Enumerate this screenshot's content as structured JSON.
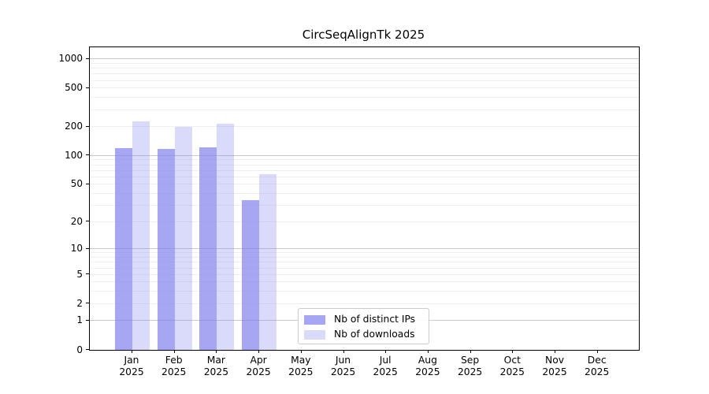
{
  "chart_data": {
    "type": "bar",
    "title": "CircSeqAlignTk 2025",
    "categories": [
      "Jan 2025",
      "Feb 2025",
      "Mar 2025",
      "Apr 2025",
      "May 2025",
      "Jun 2025",
      "Jul 2025",
      "Aug 2025",
      "Sep 2025",
      "Oct 2025",
      "Nov 2025",
      "Dec 2025"
    ],
    "series": [
      {
        "name": "Nb of distinct IPs",
        "values": [
          119,
          117,
          122,
          34,
          0,
          0,
          0,
          0,
          0,
          0,
          0,
          0
        ],
        "alpha": 0.72
      },
      {
        "name": "Nb of downloads",
        "values": [
          226,
          200,
          214,
          64,
          0,
          0,
          0,
          0,
          0,
          0,
          0,
          0
        ],
        "alpha": 0.3
      }
    ],
    "yscale": "log1p",
    "ylim": [
      0,
      1320
    ],
    "ytick_labels": [
      "0",
      "1",
      "2",
      "5",
      "10",
      "20",
      "50",
      "100",
      "200",
      "500",
      "1000"
    ],
    "ytick_values": [
      0,
      1,
      2,
      5,
      10,
      20,
      50,
      100,
      200,
      500,
      1000
    ],
    "grid": {
      "on": true,
      "minor_values": [
        2,
        3,
        4,
        5,
        6,
        7,
        8,
        9,
        20,
        30,
        40,
        50,
        60,
        70,
        80,
        90,
        200,
        300,
        400,
        500,
        600,
        700,
        800,
        900
      ],
      "major_values": [
        1,
        10,
        100,
        1000
      ]
    },
    "legend_position": "lower center",
    "xlabel": "",
    "ylabel": ""
  },
  "colors": {
    "bar_base": "#8484ee",
    "bar_distinct_ips_effective": "#aaaaf3",
    "bar_downloads_effective": "#dbdbfa",
    "grid_minor": "#efefef",
    "grid_major": "#c9c9c9",
    "axis_frame": "#000000",
    "text": "#000000",
    "legend_border": "#cccccc"
  }
}
